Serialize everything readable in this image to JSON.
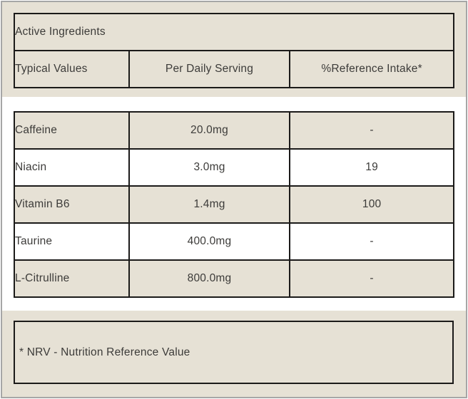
{
  "colors": {
    "panel-bg": "#e6e1d5",
    "row-bg": "#ffffff",
    "row-alt-bg": "#e6e1d5",
    "table-border": "#1b1a19",
    "frame-border": "#a6a6a6",
    "text": "#3c3b39",
    "page-bg": "#ffffff"
  },
  "table": {
    "title": "Active Ingredients",
    "columns": [
      "Typical Values",
      "Per Daily Serving",
      "%Reference Intake*"
    ],
    "rows": [
      {
        "name": "Caffeine",
        "per_daily_serving": "20.0mg",
        "reference_intake": "-"
      },
      {
        "name": "Niacin",
        "per_daily_serving": "3.0mg",
        "reference_intake": "19"
      },
      {
        "name": "Vitamin B6",
        "per_daily_serving": "1.4mg",
        "reference_intake": "100"
      },
      {
        "name": "Taurine",
        "per_daily_serving": "400.0mg",
        "reference_intake": "-"
      },
      {
        "name": "L-Citrulline",
        "per_daily_serving": "800.0mg",
        "reference_intake": "-"
      }
    ]
  },
  "footnote": "* NRV - Nutrition Reference Value"
}
